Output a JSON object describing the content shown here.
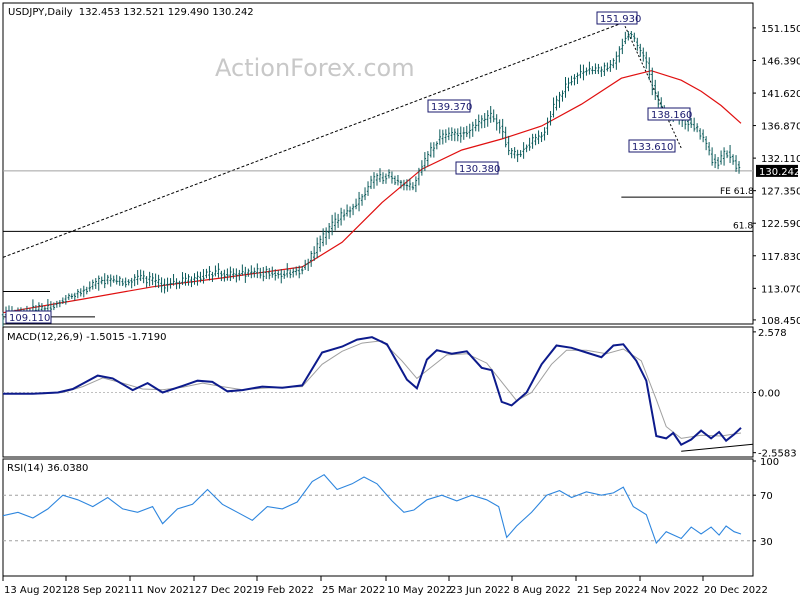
{
  "header": {
    "symbol": "USDJPY,Daily",
    "ohlc": "132.453 132.521 129.490 130.242"
  },
  "watermark": "ActionForex.com",
  "colors": {
    "candle": "#0b5a5a",
    "ma": "#e01010",
    "trendline": "#000000",
    "macd": "#0d1b8c",
    "signal": "#a0a0a0",
    "rsi": "#2e86de",
    "box_border": "#1a1a6e",
    "label_text": "#1a1a6e",
    "current_bg": "#000000",
    "current_text": "#ffffff"
  },
  "chart_data": [
    {
      "type": "candlestick",
      "title": "USDJPY,Daily",
      "ylim": [
        108.0,
        154.5
      ],
      "y_ticks": [
        "151.150",
        "146.390",
        "141.620",
        "136.870",
        "132.110",
        "127.350",
        "122.590",
        "117.830",
        "113.070",
        "108.450"
      ],
      "x_ticks": [
        "13 Aug 2021",
        "28 Sep 2021",
        "11 Nov 2021",
        "27 Dec 2021",
        "9 Feb 2022",
        "25 Mar 2022",
        "10 May 2022",
        "23 Jun 2022",
        "8 Aug 2022",
        "21 Sep 2022",
        "4 Nov 2022",
        "20 Dec 2022"
      ],
      "close_path": {
        "points": [
          [
            0,
            109.2
          ],
          [
            20,
            109.6
          ],
          [
            45,
            110.2
          ],
          [
            60,
            111.5
          ],
          [
            80,
            112.8
          ],
          [
            100,
            114.3
          ],
          [
            120,
            114.0
          ],
          [
            140,
            114.6
          ],
          [
            160,
            113.6
          ],
          [
            180,
            114.0
          ],
          [
            200,
            114.9
          ],
          [
            215,
            115.3
          ],
          [
            225,
            115.0
          ],
          [
            240,
            115.3
          ],
          [
            260,
            115.4
          ],
          [
            280,
            115.1
          ],
          [
            298,
            115.8
          ],
          [
            310,
            117.8
          ],
          [
            325,
            121.5
          ],
          [
            340,
            123.8
          ],
          [
            355,
            125.5
          ],
          [
            370,
            128.8
          ],
          [
            385,
            129.6
          ],
          [
            400,
            128.2
          ],
          [
            410,
            127.8
          ],
          [
            420,
            131.0
          ],
          [
            435,
            134.8
          ],
          [
            450,
            135.6
          ],
          [
            465,
            135.9
          ],
          [
            480,
            137.6
          ],
          [
            490,
            138.2
          ],
          [
            500,
            136.4
          ],
          [
            507,
            132.8
          ],
          [
            515,
            132.5
          ],
          [
            525,
            134.0
          ],
          [
            540,
            135.5
          ],
          [
            555,
            140.5
          ],
          [
            570,
            143.8
          ],
          [
            585,
            145.0
          ],
          [
            600,
            144.8
          ],
          [
            612,
            146.0
          ],
          [
            622,
            149.5
          ],
          [
            628,
            150.5
          ],
          [
            635,
            148.5
          ],
          [
            645,
            146.0
          ],
          [
            655,
            140.5
          ],
          [
            665,
            138.2
          ],
          [
            672,
            138.6
          ],
          [
            680,
            137.8
          ],
          [
            690,
            137.0
          ],
          [
            700,
            135.5
          ],
          [
            710,
            132.0
          ],
          [
            718,
            131.6
          ],
          [
            725,
            133.2
          ],
          [
            733,
            131.5
          ],
          [
            740,
            130.2
          ]
        ]
      },
      "moving_average": {
        "points": [
          [
            0,
            109.5
          ],
          [
            80,
            111.5
          ],
          [
            150,
            113.3
          ],
          [
            220,
            114.6
          ],
          [
            300,
            116.2
          ],
          [
            340,
            119.8
          ],
          [
            380,
            125.6
          ],
          [
            420,
            130.5
          ],
          [
            460,
            133.3
          ],
          [
            500,
            134.9
          ],
          [
            540,
            136.8
          ],
          [
            580,
            140.0
          ],
          [
            620,
            143.8
          ],
          [
            650,
            144.9
          ],
          [
            680,
            143.5
          ],
          [
            700,
            141.9
          ],
          [
            720,
            139.8
          ],
          [
            740,
            137.2
          ]
        ]
      },
      "trendline": {
        "from": [
          0,
          117.6
        ],
        "to": [
          622,
          151.93
        ]
      },
      "horizontal_lines": [
        {
          "label": "FE 61.8",
          "value": 126.4
        },
        {
          "label": "61.8",
          "value": 121.4
        },
        {
          "label": "",
          "value": 130.242
        }
      ],
      "box_labels": [
        "151.930",
        "139.370",
        "130.380",
        "138.160",
        "133.610",
        "109.110"
      ],
      "current_price": "130.242"
    },
    {
      "type": "line",
      "title": "MACD(12,26,9) -1.5015 -1.7190",
      "ylim": [
        -2.7,
        2.7
      ],
      "y_ticks": [
        "2.578",
        "0.00",
        "-2.5583"
      ],
      "series": [
        {
          "name": "MACD",
          "points": [
            [
              0,
              -0.05
            ],
            [
              30,
              -0.05
            ],
            [
              55,
              0.0
            ],
            [
              70,
              0.15
            ],
            [
              95,
              0.72
            ],
            [
              110,
              0.6
            ],
            [
              130,
              0.1
            ],
            [
              145,
              0.4
            ],
            [
              160,
              0.0
            ],
            [
              180,
              0.28
            ],
            [
              195,
              0.5
            ],
            [
              210,
              0.45
            ],
            [
              225,
              0.05
            ],
            [
              240,
              0.1
            ],
            [
              260,
              0.25
            ],
            [
              280,
              0.2
            ],
            [
              300,
              0.3
            ],
            [
              320,
              1.7
            ],
            [
              340,
              1.95
            ],
            [
              355,
              2.25
            ],
            [
              370,
              2.35
            ],
            [
              385,
              2.05
            ],
            [
              405,
              0.55
            ],
            [
              415,
              0.18
            ],
            [
              425,
              1.4
            ],
            [
              435,
              1.8
            ],
            [
              450,
              1.65
            ],
            [
              465,
              1.75
            ],
            [
              480,
              1.05
            ],
            [
              490,
              0.95
            ],
            [
              500,
              -0.4
            ],
            [
              510,
              -0.55
            ],
            [
              525,
              0.0
            ],
            [
              540,
              1.2
            ],
            [
              555,
              2.0
            ],
            [
              570,
              1.9
            ],
            [
              585,
              1.7
            ],
            [
              600,
              1.5
            ],
            [
              612,
              2.0
            ],
            [
              622,
              2.05
            ],
            [
              635,
              1.35
            ],
            [
              645,
              0.5
            ],
            [
              655,
              -1.85
            ],
            [
              665,
              -1.95
            ],
            [
              672,
              -1.72
            ],
            [
              680,
              -2.22
            ],
            [
              690,
              -2.0
            ],
            [
              700,
              -1.62
            ],
            [
              710,
              -1.95
            ],
            [
              718,
              -1.68
            ],
            [
              725,
              -2.05
            ],
            [
              733,
              -1.78
            ],
            [
              740,
              -1.5
            ]
          ]
        },
        {
          "name": "Signal",
          "points": [
            [
              0,
              -0.05
            ],
            [
              40,
              -0.05
            ],
            [
              60,
              0.0
            ],
            [
              80,
              0.25
            ],
            [
              100,
              0.62
            ],
            [
              120,
              0.4
            ],
            [
              140,
              0.15
            ],
            [
              160,
              0.12
            ],
            [
              180,
              0.22
            ],
            [
              200,
              0.4
            ],
            [
              220,
              0.25
            ],
            [
              240,
              0.12
            ],
            [
              260,
              0.18
            ],
            [
              280,
              0.22
            ],
            [
              300,
              0.25
            ],
            [
              320,
              1.2
            ],
            [
              340,
              1.75
            ],
            [
              360,
              2.1
            ],
            [
              380,
              2.2
            ],
            [
              400,
              1.35
            ],
            [
              415,
              0.6
            ],
            [
              430,
              1.1
            ],
            [
              445,
              1.6
            ],
            [
              465,
              1.65
            ],
            [
              485,
              1.25
            ],
            [
              500,
              0.45
            ],
            [
              515,
              -0.35
            ],
            [
              530,
              0.0
            ],
            [
              550,
              1.2
            ],
            [
              565,
              1.8
            ],
            [
              585,
              1.8
            ],
            [
              605,
              1.65
            ],
            [
              622,
              1.85
            ],
            [
              640,
              1.35
            ],
            [
              655,
              -0.3
            ],
            [
              665,
              -1.45
            ],
            [
              680,
              -1.95
            ],
            [
              700,
              -1.82
            ],
            [
              720,
              -1.85
            ],
            [
              740,
              -1.72
            ]
          ]
        }
      ],
      "support_line": {
        "from": [
          680,
          -2.5
        ],
        "to": [
          752,
          -2.2
        ]
      }
    },
    {
      "type": "line",
      "title": "RSI(14) 36.0380",
      "ylim": [
        0,
        100
      ],
      "y_ticks": [
        "100",
        "70",
        "30"
      ],
      "series": [
        {
          "name": "RSI",
          "points": [
            [
              0,
              52
            ],
            [
              15,
              55
            ],
            [
              30,
              50
            ],
            [
              45,
              58
            ],
            [
              60,
              70
            ],
            [
              75,
              66
            ],
            [
              90,
              60
            ],
            [
              105,
              68
            ],
            [
              120,
              58
            ],
            [
              135,
              55
            ],
            [
              150,
              60
            ],
            [
              160,
              45
            ],
            [
              175,
              58
            ],
            [
              190,
              62
            ],
            [
              205,
              75
            ],
            [
              220,
              62
            ],
            [
              235,
              55
            ],
            [
              250,
              48
            ],
            [
              265,
              60
            ],
            [
              280,
              58
            ],
            [
              295,
              64
            ],
            [
              310,
              82
            ],
            [
              322,
              88
            ],
            [
              335,
              75
            ],
            [
              350,
              80
            ],
            [
              362,
              86
            ],
            [
              375,
              80
            ],
            [
              390,
              65
            ],
            [
              402,
              55
            ],
            [
              412,
              57
            ],
            [
              425,
              66
            ],
            [
              440,
              70
            ],
            [
              455,
              65
            ],
            [
              470,
              70
            ],
            [
              485,
              66
            ],
            [
              497,
              60
            ],
            [
              505,
              33
            ],
            [
              515,
              43
            ],
            [
              530,
              55
            ],
            [
              545,
              70
            ],
            [
              558,
              74
            ],
            [
              570,
              68
            ],
            [
              585,
              73
            ],
            [
              600,
              70
            ],
            [
              612,
              72
            ],
            [
              622,
              77
            ],
            [
              632,
              60
            ],
            [
              645,
              53
            ],
            [
              655,
              28
            ],
            [
              665,
              38
            ],
            [
              680,
              32
            ],
            [
              690,
              42
            ],
            [
              700,
              36
            ],
            [
              710,
              42
            ],
            [
              718,
              35
            ],
            [
              725,
              43
            ],
            [
              733,
              38
            ],
            [
              740,
              36
            ]
          ]
        }
      ],
      "levels": [
        70,
        30
      ]
    }
  ]
}
